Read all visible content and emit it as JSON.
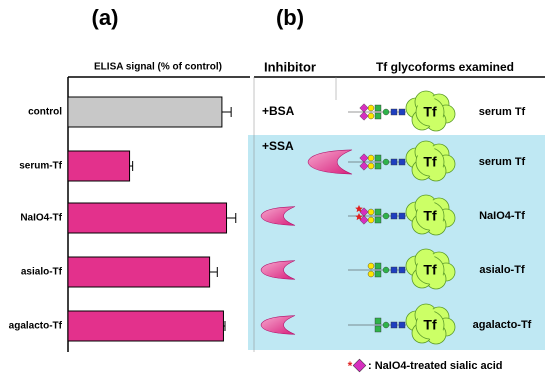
{
  "panels": {
    "a": "(a)",
    "b": "(b)"
  },
  "chart_data": {
    "type": "bar",
    "orientation": "horizontal",
    "title": "ELISA signal (% of control)",
    "categories": [
      "control",
      "serum-Tf",
      "NaIO4-Tf",
      "asialo-Tf",
      "agalacto-Tf"
    ],
    "values": [
      100,
      40,
      103,
      92,
      101
    ],
    "errors": [
      6,
      2,
      6,
      5,
      1
    ],
    "colors": [
      "#c8c8c8",
      "#e3318c",
      "#e3318c",
      "#e3318c",
      "#e3318c"
    ],
    "xlim": [
      0,
      115
    ]
  },
  "diagram": {
    "headers": {
      "inhibitor": "Inhibitor",
      "glycoforms": "Tf glycoforms examined"
    },
    "inhibitors": [
      "+BSA",
      "+SSA"
    ],
    "rows": [
      {
        "protein": "Tf",
        "label": "serum Tf"
      },
      {
        "protein": "Tf",
        "label": "serum Tf"
      },
      {
        "protein": "Tf",
        "label": "NaIO4-Tf"
      },
      {
        "protein": "Tf",
        "label": "asialo-Tf"
      },
      {
        "protein": "Tf",
        "label": "agalacto-Tf"
      }
    ],
    "legend": ": NaIO4-treated sialic acid"
  }
}
